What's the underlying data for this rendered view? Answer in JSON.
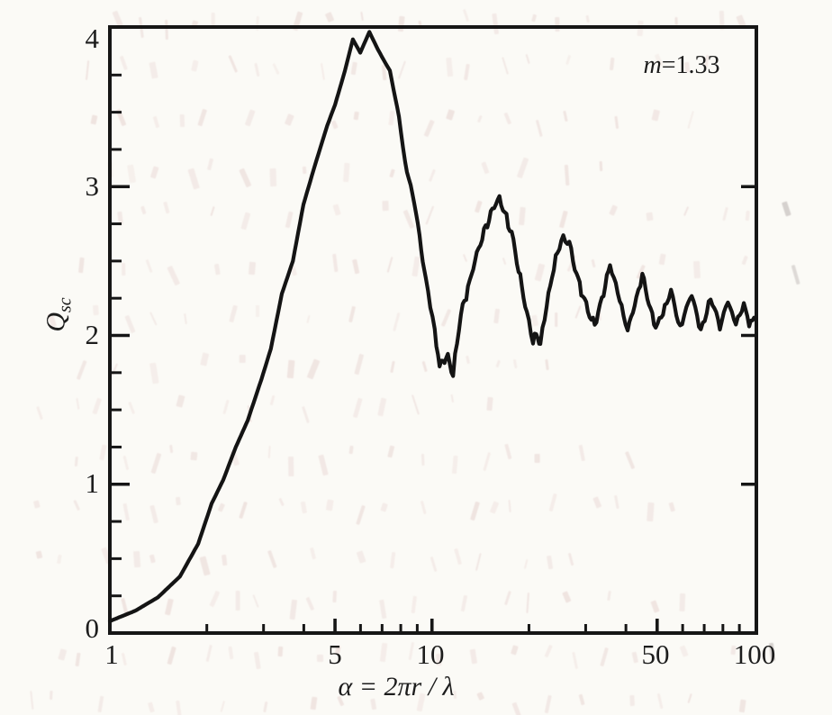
{
  "figure": {
    "y_tick_labels": [
      "4",
      "3",
      "2",
      "1",
      "0"
    ],
    "x_tick_labels": [
      "1",
      "5",
      "10",
      "50",
      "100"
    ],
    "ylabel": {
      "base": "Q",
      "sub": "sc"
    },
    "xlabel": "α = 2πr / λ",
    "annotation": {
      "var": "m",
      "value": "=1.33"
    }
  },
  "style": {
    "paper_color": "#fbfaf6",
    "ink_color": "#161616",
    "curve_color": "#141414",
    "bleed_color_pink": "#c48c8c",
    "bleed_color_gray": "#8d8181"
  },
  "chart_data": {
    "type": "line",
    "title": "",
    "xlabel": "α = 2πr / λ",
    "ylabel": "Qsc",
    "annotation": "m=1.33",
    "x_scale": "log",
    "xlim": [
      1,
      100
    ],
    "ylim": [
      0,
      4
    ],
    "x_major_ticks": [
      1,
      5,
      10,
      50,
      100
    ],
    "x_minor_ticks": [
      2,
      3,
      4,
      6,
      7,
      8,
      9,
      20,
      30,
      40,
      60,
      70,
      80,
      90
    ],
    "y_major_ticks": [
      0,
      1,
      2,
      3,
      4
    ],
    "y_minor_step": 0.25,
    "grid": false,
    "legend": "none",
    "series": [
      {
        "name": "Qsc (m=1.33)",
        "points": [
          [
            1.0,
            0.08
          ],
          [
            1.2,
            0.15
          ],
          [
            1.41,
            0.24
          ],
          [
            1.65,
            0.38
          ],
          [
            1.88,
            0.6
          ],
          [
            2.07,
            0.87
          ],
          [
            2.25,
            1.03
          ],
          [
            2.46,
            1.25
          ],
          [
            2.68,
            1.43
          ],
          [
            2.95,
            1.7
          ],
          [
            3.16,
            1.91
          ],
          [
            3.42,
            2.28
          ],
          [
            3.7,
            2.5
          ],
          [
            3.99,
            2.88
          ],
          [
            4.34,
            3.15
          ],
          [
            4.73,
            3.41
          ],
          [
            5.0,
            3.55
          ],
          [
            5.37,
            3.78
          ],
          [
            5.68,
            3.99
          ],
          [
            5.99,
            3.9
          ],
          [
            6.39,
            4.04
          ],
          [
            6.8,
            3.92
          ],
          [
            7.17,
            3.83
          ],
          [
            7.4,
            3.78
          ],
          [
            7.9,
            3.47
          ],
          [
            8.25,
            3.16
          ],
          [
            8.7,
            2.95
          ],
          [
            8.93,
            2.82
          ],
          [
            9.26,
            2.58
          ],
          [
            9.57,
            2.38
          ],
          [
            9.88,
            2.2
          ],
          [
            10.2,
            2.03
          ],
          [
            10.56,
            1.79
          ],
          [
            11.2,
            1.87
          ],
          [
            11.63,
            1.74
          ],
          [
            12.3,
            2.14
          ],
          [
            13.6,
            2.5
          ],
          [
            14.5,
            2.7
          ],
          [
            15.4,
            2.84
          ],
          [
            16.2,
            2.92
          ],
          [
            17.9,
            2.64
          ],
          [
            18.8,
            2.38
          ],
          [
            19.7,
            2.15
          ],
          [
            20.6,
            1.95
          ],
          [
            21.3,
            2.01
          ],
          [
            21.7,
            1.94
          ],
          [
            22.7,
            2.2
          ],
          [
            23.9,
            2.46
          ],
          [
            25.2,
            2.65
          ],
          [
            26.7,
            2.62
          ],
          [
            28.1,
            2.4
          ],
          [
            29.4,
            2.27
          ],
          [
            32.0,
            2.06
          ],
          [
            34.1,
            2.3
          ],
          [
            35.7,
            2.48
          ],
          [
            38.8,
            2.2
          ],
          [
            40.5,
            2.02
          ],
          [
            43.1,
            2.25
          ],
          [
            45.0,
            2.4
          ],
          [
            47.7,
            2.18
          ],
          [
            49.5,
            2.05
          ],
          [
            52.8,
            2.18
          ],
          [
            55.2,
            2.3
          ],
          [
            58.9,
            2.05
          ],
          [
            61.6,
            2.18
          ],
          [
            64.0,
            2.28
          ],
          [
            68.3,
            2.03
          ],
          [
            73.3,
            2.25
          ],
          [
            78.3,
            2.06
          ],
          [
            82.9,
            2.23
          ],
          [
            87.8,
            2.07
          ],
          [
            92.9,
            2.21
          ],
          [
            96.5,
            2.08
          ],
          [
            100.0,
            2.11
          ]
        ]
      }
    ]
  },
  "bleedthrough": {
    "present": true,
    "note": "illegible mirrored print bleed-through from reverse page",
    "rows": 15
  }
}
